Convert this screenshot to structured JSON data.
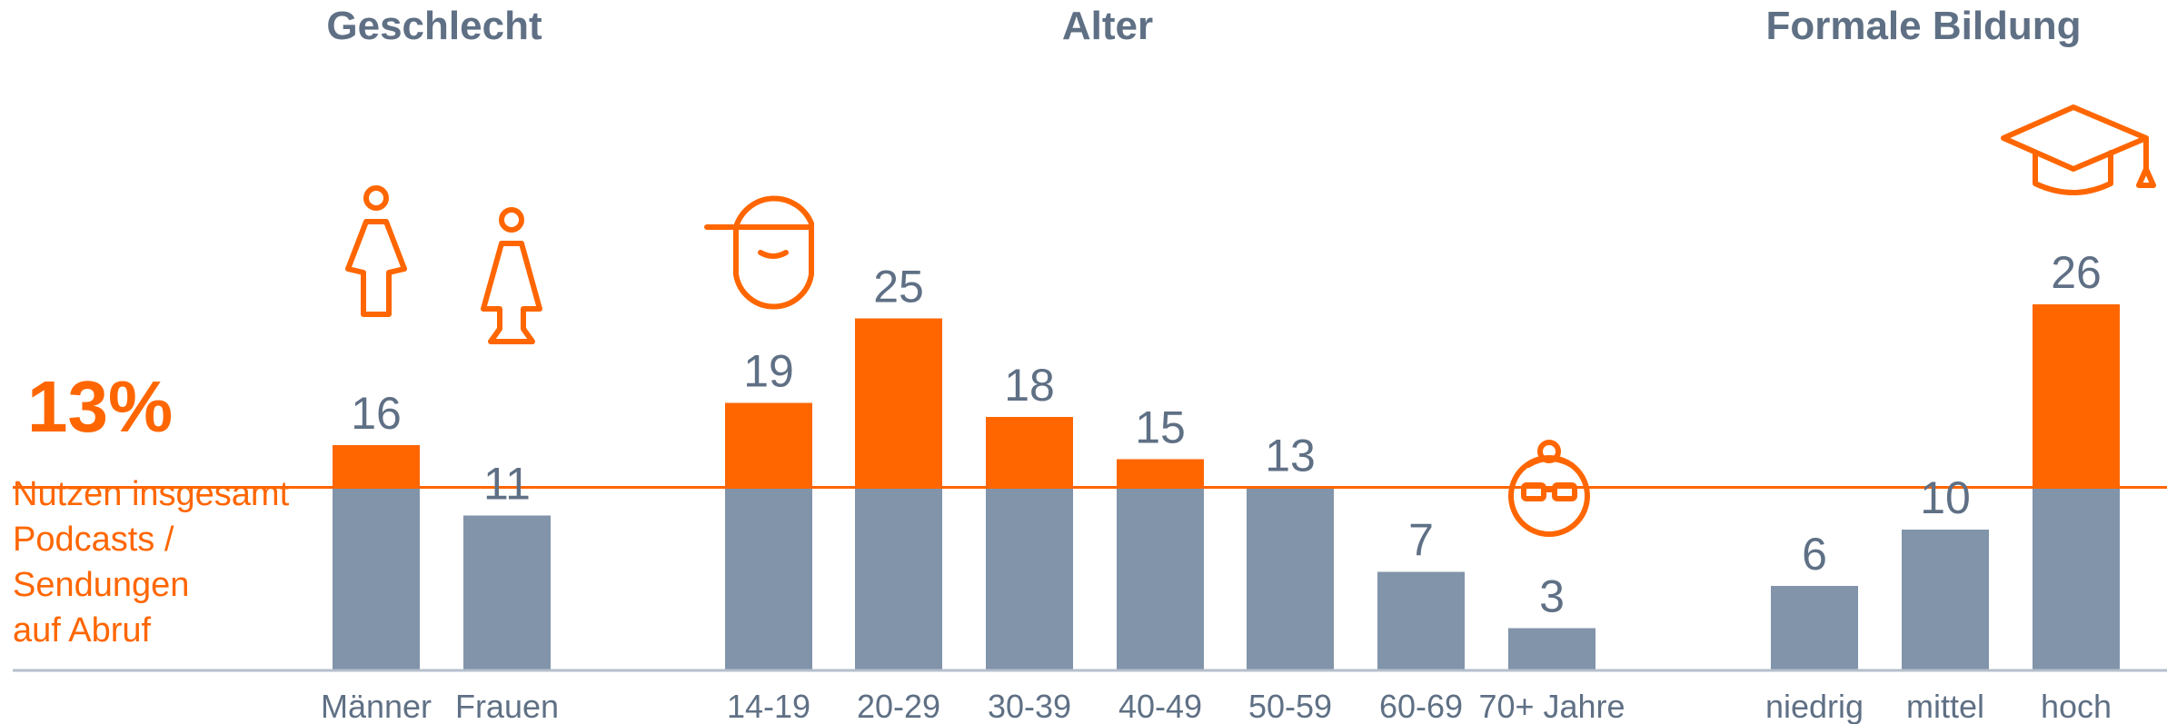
{
  "groups": [
    {
      "title": "Geschlecht"
    },
    {
      "title": "Alter"
    },
    {
      "title": "Formale Bildung"
    }
  ],
  "average": {
    "value_text": "13%",
    "label_lines": [
      "Nutzen insgesamt",
      "Podcasts /",
      "Sendungen",
      "auf Abruf"
    ]
  },
  "colors": {
    "above_average": "#ff6600",
    "base": "#8194aa",
    "text": "#5f7085",
    "axis": "#b5bfcc"
  },
  "icons": [
    "male-person-icon",
    "female-person-icon",
    "young-face-cap-icon",
    "senior-face-glasses-icon",
    "graduation-cap-icon"
  ],
  "chart_data": {
    "type": "bar",
    "categories": [
      "Männer",
      "Frauen",
      "14-19",
      "20-29",
      "30-39",
      "40-49",
      "50-59",
      "60-69",
      "70+ Jahre",
      "niedrig",
      "mittel",
      "hoch"
    ],
    "values": [
      16,
      11,
      19,
      25,
      18,
      15,
      13,
      7,
      3,
      6,
      10,
      26
    ],
    "category_groups": [
      "Geschlecht",
      "Geschlecht",
      "Alter",
      "Alter",
      "Alter",
      "Alter",
      "Alter",
      "Alter",
      "Alter",
      "Formale Bildung",
      "Formale Bildung",
      "Formale Bildung"
    ],
    "reference_line": 13,
    "ylim": [
      0,
      30
    ],
    "grid": false,
    "legend": "none"
  }
}
